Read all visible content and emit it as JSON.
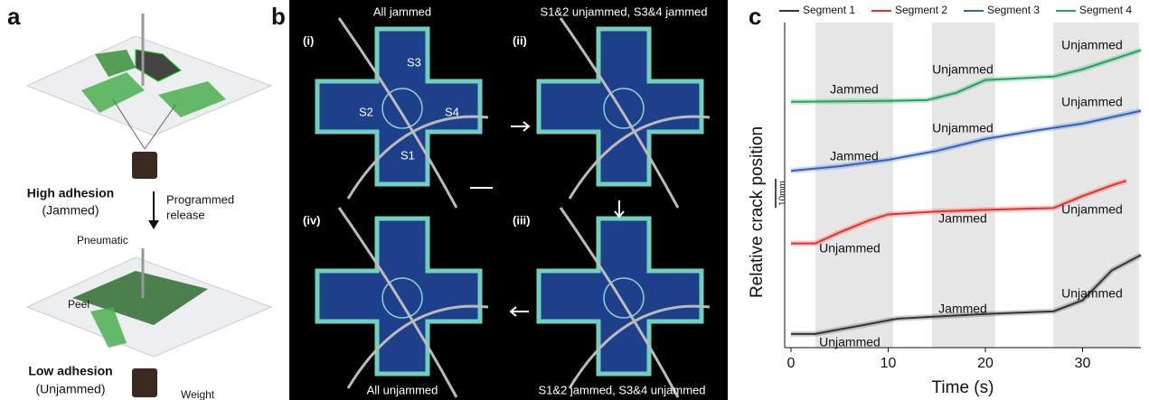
{
  "panel_a": {
    "letter": "a",
    "high_adhesion": "High adhesion",
    "jammed": "(Jammed)",
    "programmed": "Programmed",
    "release": "release",
    "pneumatic": "Pneumatic",
    "peel": "Peel",
    "low_adhesion": "Low adhesion",
    "unjammed": "(Unjammed)",
    "weight": "Weight"
  },
  "panel_b": {
    "letter": "b",
    "titles": [
      "All jammed",
      "S1&2 unjammed, S3&4 jammed",
      "S1&2 jammed, S3&4 unjammed",
      "All unjammed"
    ],
    "labels": [
      "(i)",
      "(ii)",
      "(iii)",
      "(iv)"
    ],
    "segments": [
      "S3",
      "S2",
      "S4",
      "S1"
    ]
  },
  "chart_data": {
    "type": "line",
    "letter": "c",
    "xlabel": "Time (s)",
    "ylabel": "Relative crack position",
    "xlim": [
      0,
      36
    ],
    "xticks": [
      0,
      10,
      20,
      30
    ],
    "ylim": [
      0,
      112
    ],
    "scale_bar": {
      "value": 10,
      "label": "10mm"
    },
    "shaded_regions": [
      [
        2.5,
        10.5
      ],
      [
        14.5,
        21
      ],
      [
        27,
        35.8
      ]
    ],
    "series": [
      {
        "name": "Segment 1",
        "color": "#333333",
        "x": [
          0,
          2.5,
          5,
          7.5,
          10,
          11,
          20,
          27,
          30,
          33,
          36
        ],
        "values": [
          4.7,
          4.7,
          6.3,
          7.8,
          9.4,
          10,
          11.6,
          12.5,
          16.3,
          26.6,
          31.9
        ]
      },
      {
        "name": "Segment 2",
        "color": "#e8302a",
        "x": [
          0,
          2.5,
          5,
          8,
          10,
          15,
          20,
          27,
          30,
          33,
          34.5
        ],
        "values": [
          35.9,
          35.9,
          39.7,
          43.8,
          45.9,
          46.9,
          47.5,
          48.1,
          52.2,
          55.9,
          57.5
        ]
      },
      {
        "name": "Segment 3",
        "color": "#2f63c0",
        "x": [
          0,
          5,
          10,
          15,
          20,
          25,
          30,
          36
        ],
        "values": [
          60.9,
          62.5,
          64.7,
          67.8,
          71.9,
          74.7,
          77.2,
          81.6
        ]
      },
      {
        "name": "Segment 4",
        "color": "#1fa55a",
        "x": [
          0,
          10,
          14,
          17,
          20,
          27,
          30,
          36
        ],
        "values": [
          84.7,
          85,
          85.3,
          87.8,
          92.2,
          93.4,
          95.9,
          102.5
        ]
      }
    ],
    "annotations": [
      "Jammed",
      "Unjammed",
      "Unjammed",
      "Jammed",
      "Unjammed",
      "Unjammed",
      "Unjammed",
      "Jammed",
      "Unjammed",
      "Unjammed",
      "Jammed",
      "Unjammed"
    ]
  }
}
